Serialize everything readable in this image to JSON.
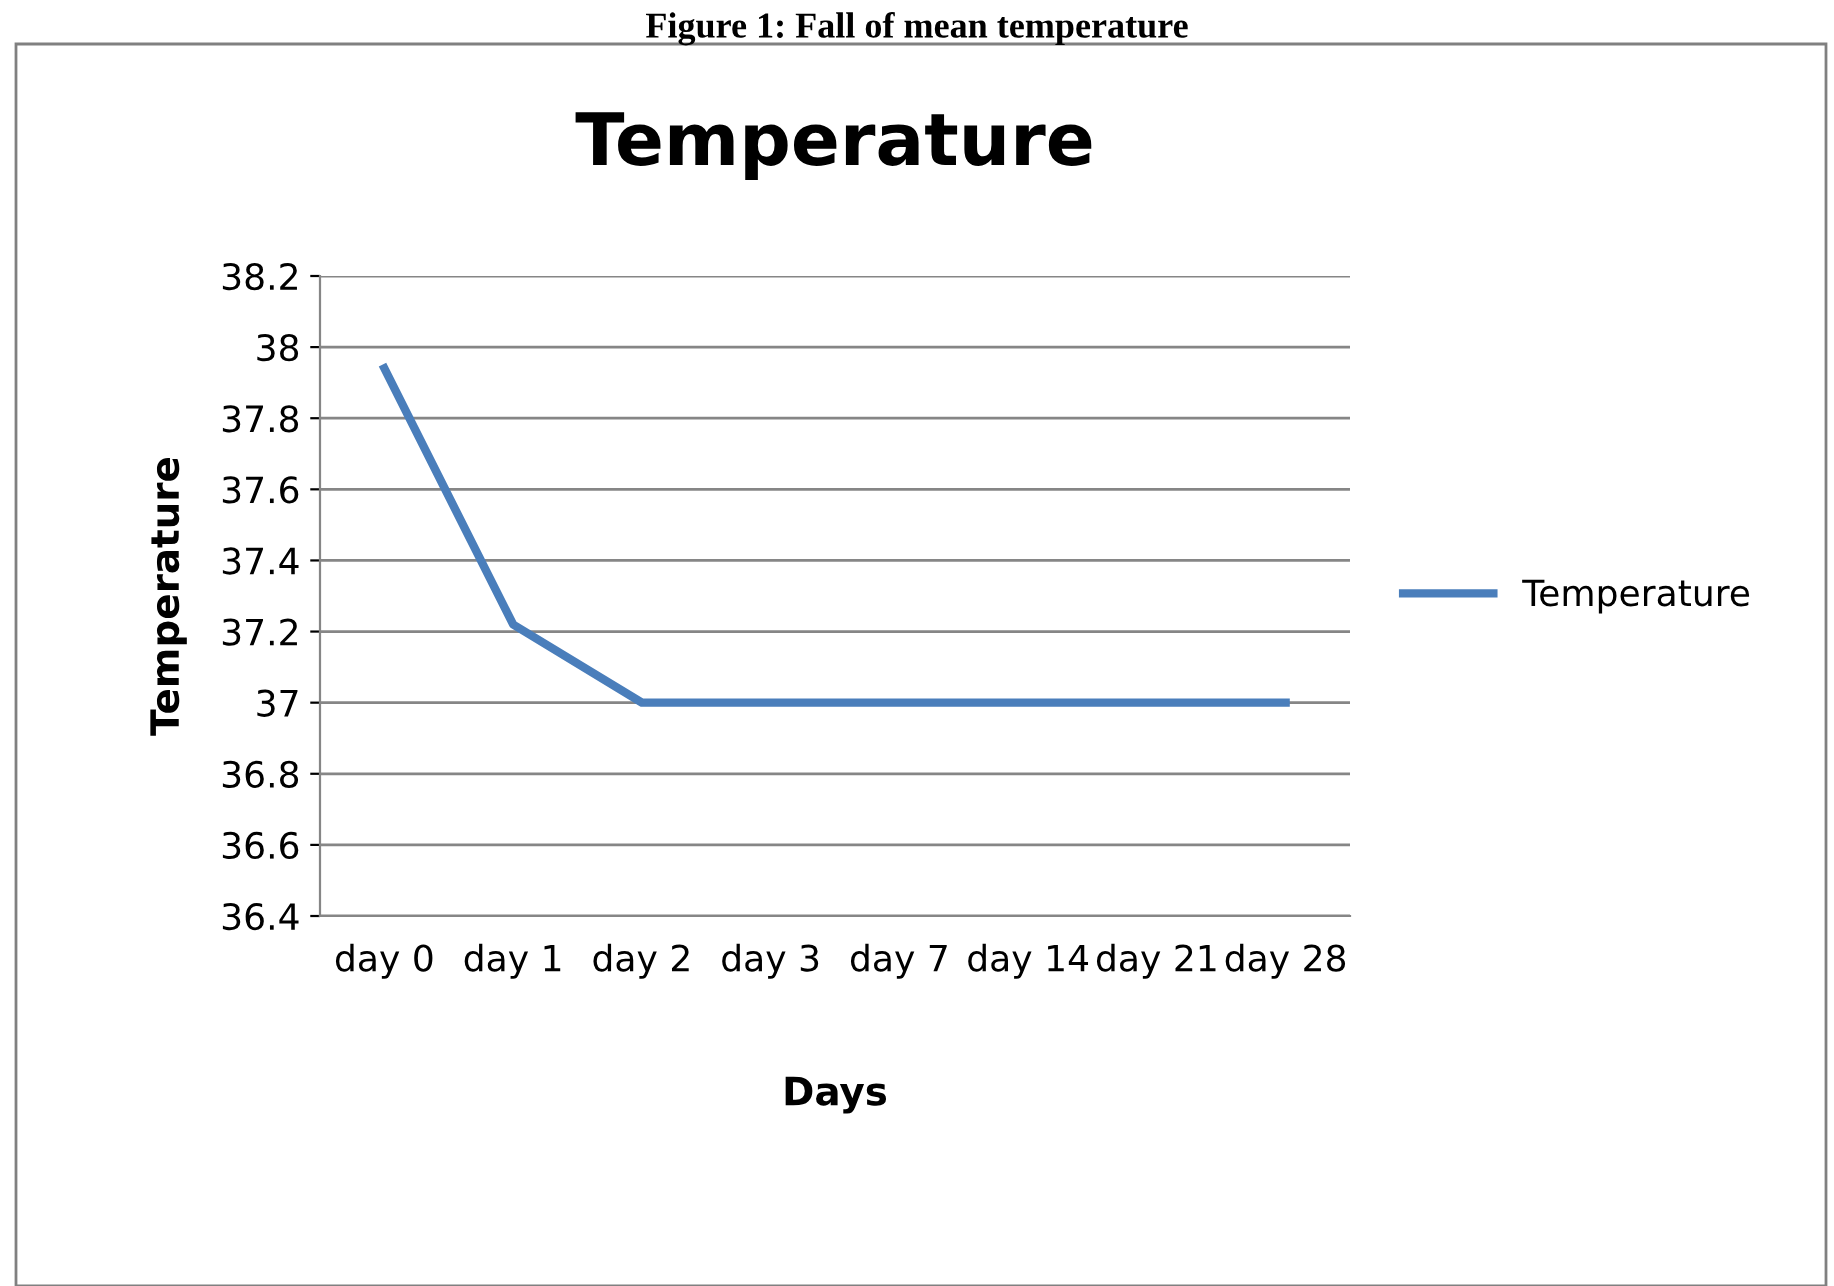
{
  "chart_data": {
    "type": "line",
    "title": "Temperature",
    "xlabel": "Days",
    "ylabel": "Temperature",
    "annotations": [
      "Figure 1: Fall of mean temperature"
    ],
    "categories": [
      "day 0",
      "day 1",
      "day 2",
      "day 3",
      "day 7",
      "day 14",
      "day 21",
      "day 28"
    ],
    "series": [
      {
        "name": "Temperature",
        "color": "#4a7ebb",
        "values": [
          37.94,
          37.22,
          37.0,
          37.0,
          37.0,
          37.0,
          37.0,
          37.0
        ]
      }
    ],
    "ylim": [
      36.4,
      38.2
    ],
    "yticks": [
      36.4,
      36.6,
      36.8,
      37,
      37.2,
      37.4,
      37.6,
      37.8,
      38,
      38.2
    ],
    "grid": "y",
    "legend": "right",
    "marker": "none",
    "line_style": "solid"
  }
}
